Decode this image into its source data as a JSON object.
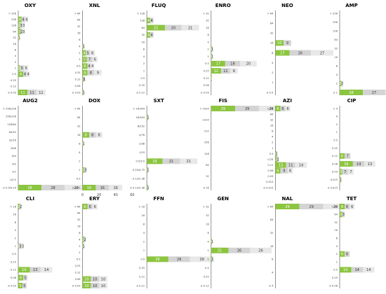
{
  "colors": {
    "green": "#8cc540",
    "grey1": "#d4d4d4",
    "grey2": "#e8e8e8"
  },
  "chart_data": [
    {
      "type": "bar",
      "title": "OXY",
      "ticks": [
        "> 256",
        "256",
        "128",
        "64",
        "32",
        "16",
        "8",
        "4",
        "2",
        "1",
        "0.5",
        "0.25",
        "0.12",
        "≤ 0.03"
      ],
      "bars": [
        {
          "tick": 1,
          "values": [
            4,
            4,
            4
          ]
        },
        {
          "tick": 2,
          "values": [
            2,
            3,
            3
          ]
        },
        {
          "tick": 3,
          "values": [
            3,
            2,
            3
          ]
        },
        {
          "tick": 4,
          "values": [
            1,
            0,
            1
          ]
        },
        {
          "tick": 9,
          "values": [
            2,
            5,
            5
          ]
        },
        {
          "tick": 10,
          "values": [
            6,
            4,
            4
          ]
        },
        {
          "tick": 13,
          "values": [
            11,
            11,
            11
          ]
        }
      ]
    },
    {
      "type": "bar",
      "title": "XNL",
      "ticks": [
        "> 64",
        "64",
        "32",
        "16",
        "8",
        "4",
        "2",
        "1",
        "0.5",
        "0.25",
        "0.12",
        "0.06",
        "≤ 0.03"
      ],
      "bars": [
        {
          "tick": 5,
          "values": [
            1,
            1,
            0
          ]
        },
        {
          "tick": 6,
          "values": [
            4,
            5,
            6
          ]
        },
        {
          "tick": 7,
          "values": [
            5,
            7,
            6
          ]
        },
        {
          "tick": 8,
          "values": [
            6,
            4,
            4
          ]
        },
        {
          "tick": 9,
          "values": [
            6,
            8,
            9
          ]
        },
        {
          "tick": 10,
          "values": [
            1,
            1,
            1
          ]
        },
        {
          "tick": 12,
          "values": [
            1,
            1,
            0
          ]
        }
      ]
    },
    {
      "type": "bar",
      "title": "FLUQ",
      "ticks": [
        "> 128",
        "128",
        "64",
        "32",
        "16",
        "8",
        "4",
        "2",
        "1",
        "0.5",
        "0.25",
        "≤ 0.12"
      ],
      "bars": [
        {
          "tick": 1,
          "values": [
            4,
            4,
            0
          ]
        },
        {
          "tick": 2,
          "values": [
            22,
            20,
            21
          ]
        },
        {
          "tick": 3,
          "values": [
            4,
            4,
            0
          ]
        }
      ]
    },
    {
      "type": "bar",
      "title": "ENRO",
      "ticks": [
        "> 32",
        "32",
        "16",
        "8",
        "4",
        "2",
        "1",
        "0.5",
        "0.25",
        "0.12",
        "0.06",
        "≤ 0.03"
      ],
      "bars": [
        {
          "tick": 5,
          "values": [
            1,
            1,
            0
          ]
        },
        {
          "tick": 6,
          "values": [
            1,
            0,
            1
          ]
        },
        {
          "tick": 7,
          "values": [
            17,
            18,
            20
          ]
        },
        {
          "tick": 8,
          "values": [
            12,
            11,
            9
          ]
        },
        {
          "tick": 9,
          "values": [
            1,
            0,
            0
          ]
        }
      ]
    },
    {
      "type": "bar",
      "title": "NEO",
      "ticks": [
        "> 64",
        "64",
        "32",
        "16",
        "8",
        "4",
        "2",
        "1",
        "≤ 0.5"
      ],
      "bars": [
        {
          "tick": 3,
          "values": [
            10,
            9,
            0
          ]
        },
        {
          "tick": 4,
          "values": [
            17,
            26,
            27
          ]
        }
      ]
    },
    {
      "type": "bar",
      "title": "AMP",
      "ticks": [
        "> 256",
        "256",
        "128",
        "64",
        "32",
        "16",
        "8",
        "4",
        "2",
        "≤ 1"
      ],
      "bars": [
        {
          "tick": 8,
          "values": [
            2,
            2,
            0
          ]
        },
        {
          "tick": 9,
          "values": [
            28,
            27,
            27
          ]
        }
      ]
    },
    {
      "type": "bar",
      "title": "AUG2",
      "ticks": [
        "> 256/128",
        "256/128",
        "128/64",
        "64/32",
        "32/16",
        "16/8",
        "8/4",
        "4/2",
        "2/1",
        "1/0.5",
        "≤ 0.5/0.25"
      ],
      "bars": [
        {
          "tick": 10,
          "values": [
            28,
            28,
            28
          ]
        }
      ]
    },
    {
      "type": "bar",
      "title": "DOX",
      "ticks": [
        "> 64",
        "64",
        "32",
        "16",
        "8",
        "4",
        "2",
        "1",
        "0.5",
        "≤ 0.25"
      ],
      "bars": [
        {
          "tick": 3,
          "values": [
            8,
            8,
            8
          ]
        },
        {
          "tick": 4,
          "values": [
            1,
            0,
            1
          ]
        },
        {
          "tick": 7,
          "values": [
            2,
            3,
            0
          ]
        },
        {
          "tick": 9,
          "values": [
            16,
            16,
            16
          ]
        }
      ],
      "x_ticks": [
        "0",
        "20",
        "40",
        "60"
      ]
    },
    {
      "type": "bar",
      "title": "SXT",
      "ticks": [
        "> 16/304",
        "16/304",
        "8/152",
        "4/76",
        "2/38",
        "1/19",
        "0.5/9.5",
        "0.25/4.75",
        "0.12/2.38",
        "≤ 0.12/2.38"
      ],
      "bars": [
        {
          "tick": 1,
          "values": [
            1,
            1,
            0
          ]
        },
        {
          "tick": 6,
          "values": [
            19,
            21,
            21
          ]
        },
        {
          "tick": 7,
          "values": [
            1,
            1,
            0
          ]
        },
        {
          "tick": 9,
          "values": [
            1,
            1,
            0
          ]
        }
      ]
    },
    {
      "type": "bar",
      "title": "FIS",
      "ticks": [
        "> 1024",
        "1024",
        "512",
        "256",
        "128",
        "64",
        "32",
        "≤ 16"
      ],
      "bars": [
        {
          "tick": 0,
          "values": [
            29,
            29,
            29
          ]
        }
      ]
    },
    {
      "type": "bar",
      "title": "AZI",
      "ticks": [
        "> 64",
        "64",
        "32",
        "16",
        "8",
        "4",
        "2",
        "1",
        "0.5",
        "0.25",
        "0.12",
        "0.06",
        "0.03",
        "0.015",
        "≤ 0.015"
      ],
      "bars": [
        {
          "tick": 0,
          "values": [
            6,
            6,
            6
          ]
        },
        {
          "tick": 8,
          "values": [
            1,
            1,
            0
          ]
        },
        {
          "tick": 9,
          "values": [
            2,
            2,
            0
          ]
        },
        {
          "tick": 10,
          "values": [
            13,
            11,
            14
          ]
        },
        {
          "tick": 11,
          "values": [
            6,
            9,
            6
          ]
        }
      ]
    },
    {
      "type": "bar",
      "title": "CIP",
      "ticks": [
        "> 4",
        "4",
        "2",
        "1",
        "0.5",
        "0.25",
        "0.12",
        "0.06",
        "0.03",
        "0.015",
        "≤ 0.015"
      ],
      "bars": [
        {
          "tick": 6,
          "values": [
            6,
            7,
            0
          ]
        },
        {
          "tick": 7,
          "values": [
            16,
            14,
            13
          ]
        },
        {
          "tick": 8,
          "values": [
            3,
            7,
            7
          ]
        },
        {
          "tick": 9,
          "values": [
            1,
            1,
            0
          ]
        }
      ]
    },
    {
      "type": "bar",
      "title": "CLI",
      "ticks": [
        "> 16",
        "16",
        "8",
        "4",
        "2",
        "1",
        "0.5",
        "0.25",
        "0.12",
        "0.06",
        "≤ 0.03"
      ],
      "bars": [
        {
          "tick": 0,
          "values": [
            2,
            2,
            0
          ]
        },
        {
          "tick": 5,
          "values": [
            1,
            3,
            3
          ]
        },
        {
          "tick": 8,
          "values": [
            14,
            13,
            14
          ]
        },
        {
          "tick": 9,
          "values": [
            6,
            5,
            0
          ]
        },
        {
          "tick": 10,
          "values": [
            5,
            5,
            0
          ]
        }
      ]
    },
    {
      "type": "bar",
      "title": "ERY",
      "ticks": [
        "> 64",
        "64",
        "32",
        "16",
        "8",
        "4",
        "2",
        "1",
        "0.5",
        "0.25",
        "0.12",
        "0.06",
        "≤ 0.03"
      ],
      "bars": [
        {
          "tick": 0,
          "values": [
            6,
            6,
            6
          ]
        },
        {
          "tick": 5,
          "values": [
            2,
            2,
            0
          ]
        },
        {
          "tick": 6,
          "values": [
            1,
            1,
            0
          ]
        },
        {
          "tick": 11,
          "values": [
            10,
            10,
            10
          ]
        },
        {
          "tick": 12,
          "values": [
            10,
            10,
            10
          ]
        }
      ]
    },
    {
      "type": "bar",
      "title": "FFN",
      "ticks": [
        "> 16",
        "16",
        "8",
        "4",
        "2",
        "1",
        "0.5",
        "0.25",
        "0.12",
        "≤ 0.12"
      ],
      "bars": [
        {
          "tick": 6,
          "values": [
            26,
            26,
            29
          ]
        }
      ]
    },
    {
      "type": "bar",
      "title": "GEN",
      "ticks": [
        "> 32",
        "32",
        "16",
        "8",
        "4",
        "2",
        "1",
        "0.5",
        "0.25",
        "≤ 0.12"
      ],
      "bars": [
        {
          "tick": 4,
          "values": [
            1,
            0,
            1
          ]
        },
        {
          "tick": 5,
          "values": [
            21,
            26,
            26
          ]
        },
        {
          "tick": 6,
          "values": [
            1,
            1,
            0
          ]
        }
      ]
    },
    {
      "type": "bar",
      "title": "NAL",
      "ticks": [
        "> 64",
        "64",
        "32",
        "16",
        "8",
        "4",
        "≤ 4"
      ],
      "bars": [
        {
          "tick": 0,
          "values": [
            29,
            29,
            29
          ]
        }
      ]
    },
    {
      "type": "bar",
      "title": "TET",
      "ticks": [
        "> 64",
        "64",
        "32",
        "16",
        "8",
        "4",
        "2",
        "1",
        "0.5",
        "0.25",
        "≤ 0.06"
      ],
      "bars": [
        {
          "tick": 0,
          "values": [
            6,
            6,
            6
          ]
        },
        {
          "tick": 1,
          "values": [
            3,
            3,
            0
          ]
        },
        {
          "tick": 6,
          "values": [
            6,
            6,
            0
          ]
        },
        {
          "tick": 8,
          "values": [
            14,
            14,
            14
          ]
        }
      ]
    }
  ]
}
